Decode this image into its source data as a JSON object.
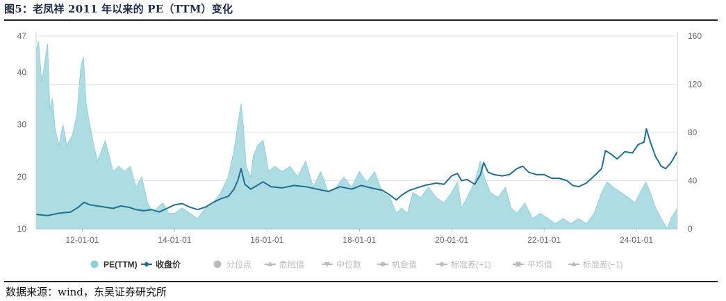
{
  "figure": {
    "caption": "图5：老凤祥 2011 年以来的 PE（TTM）变化",
    "source": "数据来源：wind，东吴证券研究所"
  },
  "colors": {
    "pe_fill": "#a9dbe1",
    "pe_line": "#8fd0d8",
    "price_line": "#1f6f95",
    "grid": "#e4e4e4",
    "axis_text": "#666666",
    "legend_inactive": "#bcbcbc",
    "legend_active": "#333333"
  },
  "chart_data": {
    "type": "area",
    "x_ticks": [
      "12-01-01",
      "14-01-01",
      "16-01-01",
      "18-01-01",
      "20-01-01",
      "22-01-01",
      "24-01-01"
    ],
    "x_range": [
      "2011-01-01",
      "2024-11-20"
    ],
    "y_left": {
      "min": 10,
      "max": 47,
      "ticks": [
        10,
        20,
        30,
        40,
        47
      ]
    },
    "y_right": {
      "min": 0,
      "max": 160,
      "ticks": [
        0,
        40,
        80,
        120,
        160
      ]
    },
    "grid": true,
    "legend_position": "bottom",
    "series": [
      {
        "name": "PE(TTM)",
        "axis": "left",
        "style": "area",
        "points": [
          [
            "2011-01-01",
            44
          ],
          [
            "2011-01-20",
            46
          ],
          [
            "2011-02-15",
            38
          ],
          [
            "2011-03-10",
            42
          ],
          [
            "2011-04-01",
            45.5
          ],
          [
            "2011-04-20",
            33
          ],
          [
            "2011-05-10",
            35
          ],
          [
            "2011-06-01",
            29
          ],
          [
            "2011-07-01",
            26
          ],
          [
            "2011-08-01",
            30
          ],
          [
            "2011-09-01",
            26
          ],
          [
            "2011-10-15",
            28
          ],
          [
            "2011-11-20",
            32
          ],
          [
            "2011-12-20",
            41
          ],
          [
            "2012-01-10",
            43
          ],
          [
            "2012-02-01",
            34
          ],
          [
            "2012-03-01",
            30
          ],
          [
            "2012-04-01",
            26
          ],
          [
            "2012-05-01",
            23
          ],
          [
            "2012-06-01",
            25
          ],
          [
            "2012-07-01",
            27
          ],
          [
            "2012-08-01",
            24
          ],
          [
            "2012-09-01",
            21
          ],
          [
            "2012-10-15",
            22
          ],
          [
            "2012-12-01",
            21
          ],
          [
            "2013-01-15",
            22
          ],
          [
            "2013-03-01",
            18
          ],
          [
            "2013-04-15",
            20
          ],
          [
            "2013-06-01",
            15
          ],
          [
            "2013-07-15",
            13
          ],
          [
            "2013-08-15",
            14
          ],
          [
            "2013-10-01",
            15
          ],
          [
            "2013-11-15",
            13
          ],
          [
            "2014-01-01",
            13
          ],
          [
            "2014-03-01",
            14
          ],
          [
            "2014-05-01",
            13
          ],
          [
            "2014-07-01",
            12
          ],
          [
            "2014-09-01",
            14
          ],
          [
            "2014-11-01",
            15
          ],
          [
            "2015-01-01",
            17
          ],
          [
            "2015-03-01",
            20
          ],
          [
            "2015-04-15",
            25
          ],
          [
            "2015-05-15",
            30
          ],
          [
            "2015-06-10",
            34
          ],
          [
            "2015-07-01",
            29
          ],
          [
            "2015-07-20",
            22
          ],
          [
            "2015-08-25",
            20
          ],
          [
            "2015-09-15",
            24
          ],
          [
            "2015-10-20",
            26
          ],
          [
            "2015-12-01",
            27
          ],
          [
            "2016-01-15",
            21
          ],
          [
            "2016-03-01",
            22
          ],
          [
            "2016-05-01",
            21
          ],
          [
            "2016-07-01",
            22
          ],
          [
            "2016-09-01",
            20
          ],
          [
            "2016-11-01",
            23
          ],
          [
            "2017-01-01",
            18
          ],
          [
            "2017-03-01",
            21
          ],
          [
            "2017-05-01",
            17
          ],
          [
            "2017-07-01",
            18
          ],
          [
            "2017-09-01",
            20
          ],
          [
            "2017-11-01",
            18
          ],
          [
            "2018-01-01",
            21
          ],
          [
            "2018-03-01",
            19
          ],
          [
            "2018-05-01",
            21
          ],
          [
            "2018-07-01",
            17
          ],
          [
            "2018-09-01",
            16
          ],
          [
            "2018-10-20",
            13
          ],
          [
            "2018-12-01",
            14
          ],
          [
            "2019-01-15",
            13
          ],
          [
            "2019-03-01",
            17
          ],
          [
            "2019-05-01",
            16
          ],
          [
            "2019-07-01",
            18
          ],
          [
            "2019-09-01",
            16
          ],
          [
            "2019-11-01",
            15
          ],
          [
            "2020-01-01",
            17
          ],
          [
            "2020-02-15",
            19
          ],
          [
            "2020-03-20",
            14
          ],
          [
            "2020-05-01",
            16
          ],
          [
            "2020-07-01",
            19
          ],
          [
            "2020-08-15",
            23
          ],
          [
            "2020-09-15",
            20
          ],
          [
            "2020-11-01",
            17
          ],
          [
            "2021-01-01",
            16
          ],
          [
            "2021-03-01",
            18
          ],
          [
            "2021-04-15",
            14
          ],
          [
            "2021-06-01",
            13
          ],
          [
            "2021-08-01",
            15
          ],
          [
            "2021-10-01",
            12
          ],
          [
            "2021-12-01",
            13
          ],
          [
            "2022-02-01",
            12
          ],
          [
            "2022-04-01",
            11
          ],
          [
            "2022-06-01",
            12
          ],
          [
            "2022-08-01",
            11
          ],
          [
            "2022-10-01",
            12
          ],
          [
            "2022-12-01",
            11
          ],
          [
            "2023-02-01",
            13
          ],
          [
            "2023-04-01",
            17
          ],
          [
            "2023-05-15",
            19
          ],
          [
            "2023-07-01",
            18
          ],
          [
            "2023-09-01",
            17
          ],
          [
            "2023-11-01",
            16
          ],
          [
            "2023-12-20",
            15
          ],
          [
            "2024-02-01",
            17
          ],
          [
            "2024-03-15",
            19
          ],
          [
            "2024-04-20",
            17
          ],
          [
            "2024-06-01",
            14
          ],
          [
            "2024-07-15",
            12
          ],
          [
            "2024-09-01",
            10
          ],
          [
            "2024-10-01",
            12
          ],
          [
            "2024-11-20",
            14
          ]
        ]
      },
      {
        "name": "收盘价",
        "axis": "right",
        "style": "line",
        "points": [
          [
            "2011-01-01",
            12
          ],
          [
            "2011-04-01",
            11
          ],
          [
            "2011-07-01",
            13
          ],
          [
            "2011-10-01",
            14
          ],
          [
            "2011-12-01",
            18
          ],
          [
            "2012-01-15",
            22
          ],
          [
            "2012-03-01",
            20
          ],
          [
            "2012-05-01",
            19
          ],
          [
            "2012-07-01",
            18
          ],
          [
            "2012-09-01",
            17
          ],
          [
            "2012-11-01",
            19
          ],
          [
            "2013-01-01",
            18
          ],
          [
            "2013-03-01",
            16
          ],
          [
            "2013-05-01",
            15
          ],
          [
            "2013-07-01",
            16
          ],
          [
            "2013-09-01",
            14
          ],
          [
            "2013-11-01",
            17
          ],
          [
            "2014-01-01",
            20
          ],
          [
            "2014-03-01",
            21
          ],
          [
            "2014-05-01",
            18
          ],
          [
            "2014-07-01",
            16
          ],
          [
            "2014-09-01",
            18
          ],
          [
            "2014-11-01",
            22
          ],
          [
            "2015-01-01",
            25
          ],
          [
            "2015-03-01",
            27
          ],
          [
            "2015-04-15",
            33
          ],
          [
            "2015-05-15",
            40
          ],
          [
            "2015-06-10",
            50
          ],
          [
            "2015-07-10",
            37
          ],
          [
            "2015-08-25",
            33
          ],
          [
            "2015-10-15",
            36
          ],
          [
            "2015-12-01",
            39
          ],
          [
            "2016-02-01",
            35
          ],
          [
            "2016-05-01",
            34
          ],
          [
            "2016-08-01",
            36
          ],
          [
            "2016-11-01",
            35
          ],
          [
            "2017-02-01",
            33
          ],
          [
            "2017-05-01",
            31
          ],
          [
            "2017-08-01",
            35
          ],
          [
            "2017-11-01",
            33
          ],
          [
            "2018-01-15",
            36
          ],
          [
            "2018-04-01",
            34
          ],
          [
            "2018-07-01",
            32
          ],
          [
            "2018-09-01",
            28
          ],
          [
            "2018-10-20",
            24
          ],
          [
            "2018-12-01",
            28
          ],
          [
            "2019-02-01",
            32
          ],
          [
            "2019-04-01",
            34
          ],
          [
            "2019-06-01",
            36
          ],
          [
            "2019-09-01",
            38
          ],
          [
            "2019-11-01",
            37
          ],
          [
            "2020-01-01",
            44
          ],
          [
            "2020-02-15",
            46
          ],
          [
            "2020-03-20",
            40
          ],
          [
            "2020-05-01",
            41
          ],
          [
            "2020-07-01",
            37
          ],
          [
            "2020-08-15",
            45
          ],
          [
            "2020-09-10",
            55
          ],
          [
            "2020-10-15",
            47
          ],
          [
            "2020-12-01",
            45
          ],
          [
            "2021-02-01",
            44
          ],
          [
            "2021-04-01",
            45
          ],
          [
            "2021-06-01",
            50
          ],
          [
            "2021-07-15",
            52
          ],
          [
            "2021-09-01",
            47
          ],
          [
            "2021-11-01",
            45
          ],
          [
            "2022-01-01",
            45
          ],
          [
            "2022-03-01",
            42
          ],
          [
            "2022-05-01",
            42
          ],
          [
            "2022-07-01",
            40
          ],
          [
            "2022-08-15",
            36
          ],
          [
            "2022-10-01",
            35
          ],
          [
            "2022-12-01",
            38
          ],
          [
            "2023-02-01",
            44
          ],
          [
            "2023-04-01",
            50
          ],
          [
            "2023-05-01",
            65
          ],
          [
            "2023-06-15",
            62
          ],
          [
            "2023-08-01",
            58
          ],
          [
            "2023-10-01",
            64
          ],
          [
            "2023-12-01",
            63
          ],
          [
            "2024-01-15",
            70
          ],
          [
            "2024-03-01",
            72
          ],
          [
            "2024-03-20",
            83
          ],
          [
            "2024-04-20",
            72
          ],
          [
            "2024-06-01",
            60
          ],
          [
            "2024-07-15",
            52
          ],
          [
            "2024-08-20",
            50
          ],
          [
            "2024-10-01",
            55
          ],
          [
            "2024-11-20",
            64
          ]
        ]
      }
    ]
  },
  "legend": [
    {
      "label": "PE(TTM)",
      "icon": "circle",
      "active": true,
      "color": "#8fd0d8"
    },
    {
      "label": "收盘价",
      "icon": "line-diamond",
      "active": true,
      "color": "#1f6f95"
    },
    {
      "label": "分位点",
      "icon": "circle",
      "active": false
    },
    {
      "label": "危险值",
      "icon": "line-triangle",
      "active": false
    },
    {
      "label": "中位数",
      "icon": "line-triangle-down",
      "active": false
    },
    {
      "label": "机会值",
      "icon": "line-circle",
      "active": false
    },
    {
      "label": "标准差(+1)",
      "icon": "line-diamond",
      "active": false
    },
    {
      "label": "平均值",
      "icon": "line-square",
      "active": false
    },
    {
      "label": "标准差(−1)",
      "icon": "line-triangle",
      "active": false
    }
  ]
}
